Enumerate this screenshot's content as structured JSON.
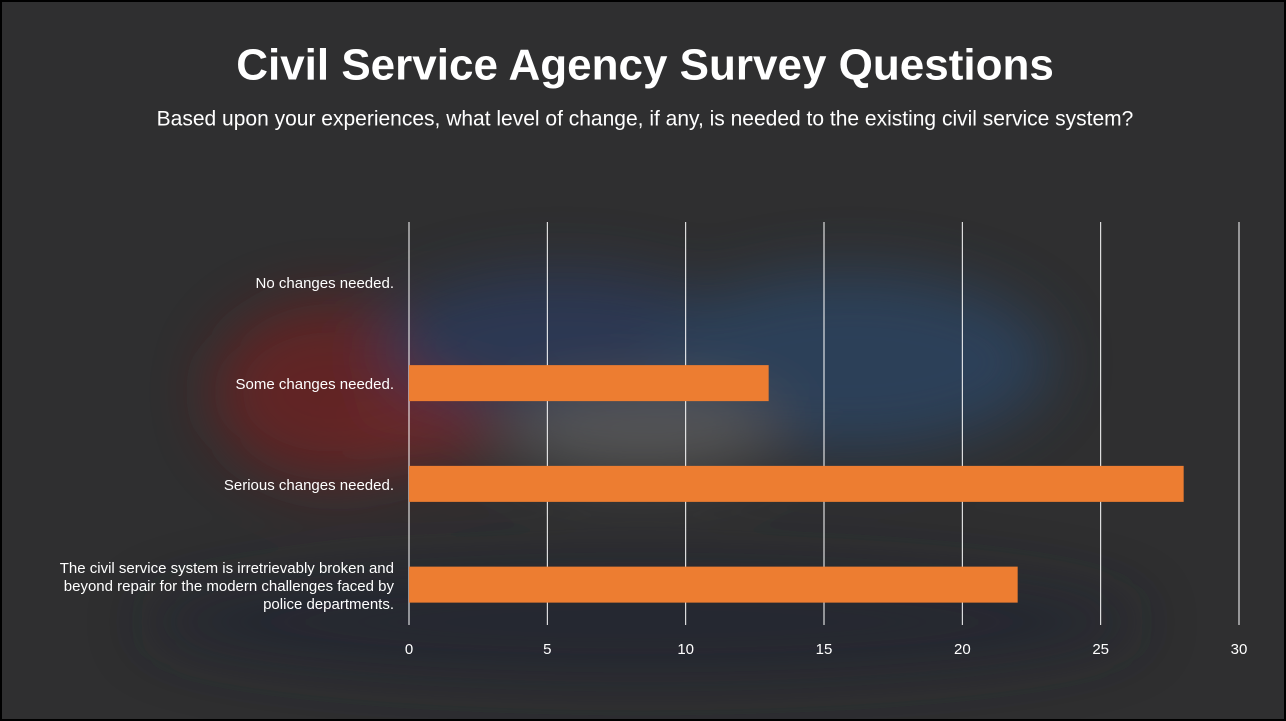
{
  "chart_data": {
    "type": "bar",
    "orientation": "horizontal",
    "title": "Civil Service Agency Survey Questions",
    "subtitle": "Based upon your experiences, what level of change, if any, is needed to the existing civil service system?",
    "categories": [
      "No changes needed.",
      "Some changes needed.",
      "Serious changes needed.",
      "The civil service system is irretrievably broken and beyond repair for the modern challenges faced by police departments."
    ],
    "values": [
      0,
      13,
      28,
      22
    ],
    "color": "#ed7d31",
    "xlim": [
      0,
      30
    ],
    "xticks": [
      0,
      5,
      10,
      15,
      20,
      25,
      30
    ],
    "grid": true
  }
}
